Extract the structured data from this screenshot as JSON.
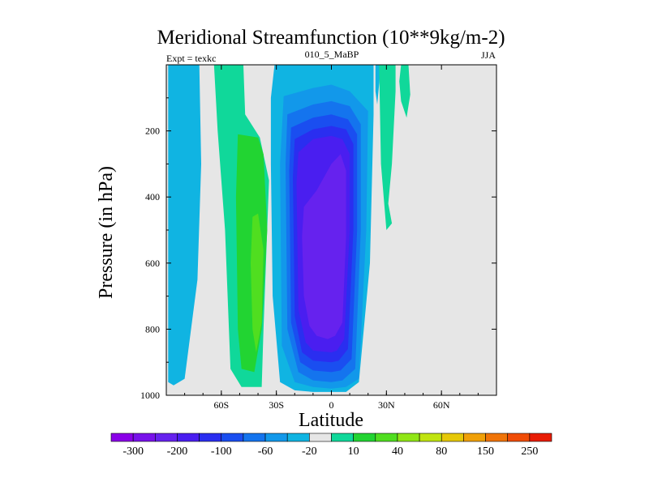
{
  "chart_data": {
    "type": "contour",
    "title": "Meridional Streamfunction (10**9kg/m-2)",
    "left_label": "Expt = texkc",
    "center_label": "010_5_MaBP",
    "right_label": "JJA",
    "xlabel": "Latitude",
    "ylabel": "Pressure (in hPa)",
    "xlim": [
      -90,
      90
    ],
    "ylim": [
      1000,
      0
    ],
    "x_ticks": [
      {
        "value": -60,
        "label": "60S"
      },
      {
        "value": -30,
        "label": "30S"
      },
      {
        "value": 0,
        "label": "0"
      },
      {
        "value": 30,
        "label": "30N"
      },
      {
        "value": 60,
        "label": "60N"
      }
    ],
    "y_ticks": [
      {
        "value": 200,
        "label": "200"
      },
      {
        "value": 400,
        "label": "400"
      },
      {
        "value": 600,
        "label": "600"
      },
      {
        "value": 800,
        "label": "800"
      },
      {
        "value": 1000,
        "label": "1000"
      }
    ],
    "background_color": "#e6e6e6",
    "colorbar": {
      "levels": [
        -300,
        -250,
        -200,
        -150,
        -100,
        -80,
        -60,
        -40,
        -20,
        -10,
        10,
        20,
        40,
        60,
        80,
        100,
        150,
        200,
        250,
        300
      ],
      "labels": [
        "-300",
        "-200",
        "-100",
        "-60",
        "-20",
        "10",
        "40",
        "80",
        "150",
        "250"
      ],
      "colors": [
        "#8a00e8",
        "#7812ea",
        "#6622ee",
        "#4a1ef0",
        "#2a2ef0",
        "#1a4ef0",
        "#1474ee",
        "#1298ea",
        "#10b4e2",
        "#e6e6e6",
        "#10d89a",
        "#22d432",
        "#50de20",
        "#90e616",
        "#c0e410",
        "#e6c808",
        "#f0a008",
        "#f07408",
        "#f04c06",
        "#e81c04"
      ]
    },
    "regions": [
      {
        "label": "-10",
        "color": "#10b4e2",
        "x": [
          -89,
          -80,
          -72,
          -71,
          -73,
          -80,
          -86,
          -89
        ],
        "y": [
          0,
          0,
          0,
          300,
          650,
          950,
          970,
          960
        ]
      },
      {
        "label": "10",
        "color": "#10d89a",
        "x": [
          -64,
          -48,
          -47,
          -39,
          -34,
          -37,
          -38,
          -49,
          -55,
          -58,
          -62
        ],
        "y": [
          0,
          0,
          150,
          220,
          350,
          800,
          975,
          975,
          920,
          500,
          200
        ]
      },
      {
        "label": "20",
        "color": "#22d432",
        "x": [
          -51,
          -40,
          -37,
          -35,
          -38,
          -42,
          -49,
          -51,
          -52
        ],
        "y": [
          210,
          220,
          270,
          500,
          800,
          930,
          920,
          800,
          400
        ]
      },
      {
        "label": "40",
        "color": "#50de20",
        "x": [
          -43,
          -40,
          -37,
          -38,
          -41,
          -43,
          -44
        ],
        "y": [
          460,
          450,
          560,
          780,
          870,
          800,
          600
        ]
      },
      {
        "label": "-10",
        "color": "#10b4e2",
        "x": [
          -31,
          -20,
          -10,
          0,
          10,
          23,
          23,
          21,
          15,
          8,
          0,
          -10,
          -20,
          -28,
          -32,
          -33,
          -33
        ],
        "y": [
          0,
          0,
          0,
          0,
          0,
          0,
          150,
          600,
          960,
          990,
          990,
          990,
          985,
          960,
          700,
          300,
          100
        ]
      },
      {
        "label": "-20",
        "color": "#1298ea",
        "x": [
          -26,
          -10,
          0,
          10,
          20,
          19,
          15,
          8,
          0,
          -10,
          -20,
          -27,
          -28
        ],
        "y": [
          95,
          70,
          60,
          80,
          140,
          500,
          950,
          975,
          980,
          975,
          960,
          850,
          300
        ]
      },
      {
        "label": "-40",
        "color": "#1474ee",
        "x": [
          -24,
          -10,
          0,
          10,
          16,
          16,
          13,
          6,
          0,
          -10,
          -18,
          -24,
          -25
        ],
        "y": [
          150,
          120,
          110,
          125,
          180,
          500,
          920,
          955,
          960,
          955,
          930,
          800,
          300
        ]
      },
      {
        "label": "-60",
        "color": "#1a4ef0",
        "x": [
          -22,
          -10,
          0,
          9,
          14,
          14,
          11,
          5,
          0,
          -10,
          -17,
          -22,
          -23
        ],
        "y": [
          190,
          160,
          150,
          165,
          210,
          500,
          890,
          925,
          930,
          925,
          900,
          780,
          320
        ]
      },
      {
        "label": "-80",
        "color": "#2a2ef0",
        "x": [
          -20,
          -10,
          0,
          8,
          12,
          12,
          9,
          4,
          0,
          -10,
          -16,
          -20,
          -21
        ],
        "y": [
          225,
          195,
          185,
          195,
          240,
          500,
          860,
          895,
          900,
          895,
          870,
          760,
          340
        ]
      },
      {
        "label": "-100",
        "color": "#4a1ef0",
        "x": [
          -18,
          -10,
          0,
          6,
          10,
          10,
          7,
          3,
          0,
          -10,
          -14,
          -18,
          -19
        ],
        "y": [
          265,
          225,
          215,
          225,
          270,
          500,
          830,
          865,
          870,
          865,
          840,
          740,
          360
        ]
      },
      {
        "label": "-150",
        "color": "#6622ee",
        "x": [
          -15,
          -8,
          0,
          5,
          8,
          8,
          6,
          2,
          -2,
          -8,
          -12,
          -15,
          -16
        ],
        "y": [
          430,
          380,
          300,
          270,
          320,
          520,
          780,
          820,
          830,
          820,
          790,
          700,
          520
        ]
      },
      {
        "label": "-10",
        "color": "#10b4e2",
        "x": [
          -27,
          -21,
          -20,
          -22,
          -25,
          -26
        ],
        "y": [
          0,
          0,
          20,
          40,
          30,
          15
        ]
      },
      {
        "label": "-10",
        "color": "#10b4e2",
        "x": [
          24,
          27,
          26,
          25,
          24
        ],
        "y": [
          0,
          0,
          60,
          120,
          80
        ]
      },
      {
        "label": "10",
        "color": "#10d89a",
        "x": [
          26,
          32,
          35,
          35,
          33,
          31,
          33,
          30,
          27
        ],
        "y": [
          0,
          0,
          0,
          80,
          300,
          420,
          480,
          500,
          300
        ]
      },
      {
        "label": "10",
        "color": "#10d89a",
        "x": [
          38,
          42,
          43,
          41,
          38,
          37
        ],
        "y": [
          0,
          0,
          90,
          160,
          110,
          50
        ]
      }
    ]
  }
}
